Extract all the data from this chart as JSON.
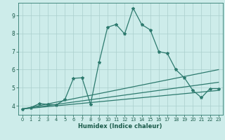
{
  "xlabel": "Humidex (Indice chaleur)",
  "background_color": "#cdecea",
  "grid_color": "#aacfcc",
  "line_color": "#2d7a6e",
  "xlim": [
    -0.5,
    23.5
  ],
  "ylim": [
    3.5,
    9.7
  ],
  "xticks": [
    0,
    1,
    2,
    3,
    4,
    5,
    6,
    7,
    8,
    9,
    10,
    11,
    12,
    13,
    14,
    15,
    16,
    17,
    18,
    19,
    20,
    21,
    22,
    23
  ],
  "yticks": [
    4,
    5,
    6,
    7,
    8,
    9
  ],
  "main_x": [
    0,
    1,
    2,
    3,
    4,
    5,
    6,
    7,
    8,
    9,
    10,
    11,
    12,
    13,
    14,
    15,
    16,
    17,
    18,
    19,
    20,
    21,
    22,
    23
  ],
  "main_y": [
    3.82,
    3.9,
    4.12,
    4.08,
    4.05,
    4.35,
    5.52,
    5.55,
    4.08,
    6.4,
    8.35,
    8.5,
    7.98,
    9.4,
    8.5,
    8.2,
    7.0,
    6.9,
    6.0,
    5.55,
    4.85,
    4.45,
    4.95,
    4.95
  ],
  "trend1_x": [
    0,
    23
  ],
  "trend1_y": [
    3.82,
    6.0
  ],
  "trend2_x": [
    0,
    23
  ],
  "trend2_y": [
    3.82,
    5.3
  ],
  "trend3_x": [
    0,
    23
  ],
  "trend3_y": [
    3.82,
    4.85
  ],
  "marker_size": 3.0,
  "linewidth": 0.9
}
